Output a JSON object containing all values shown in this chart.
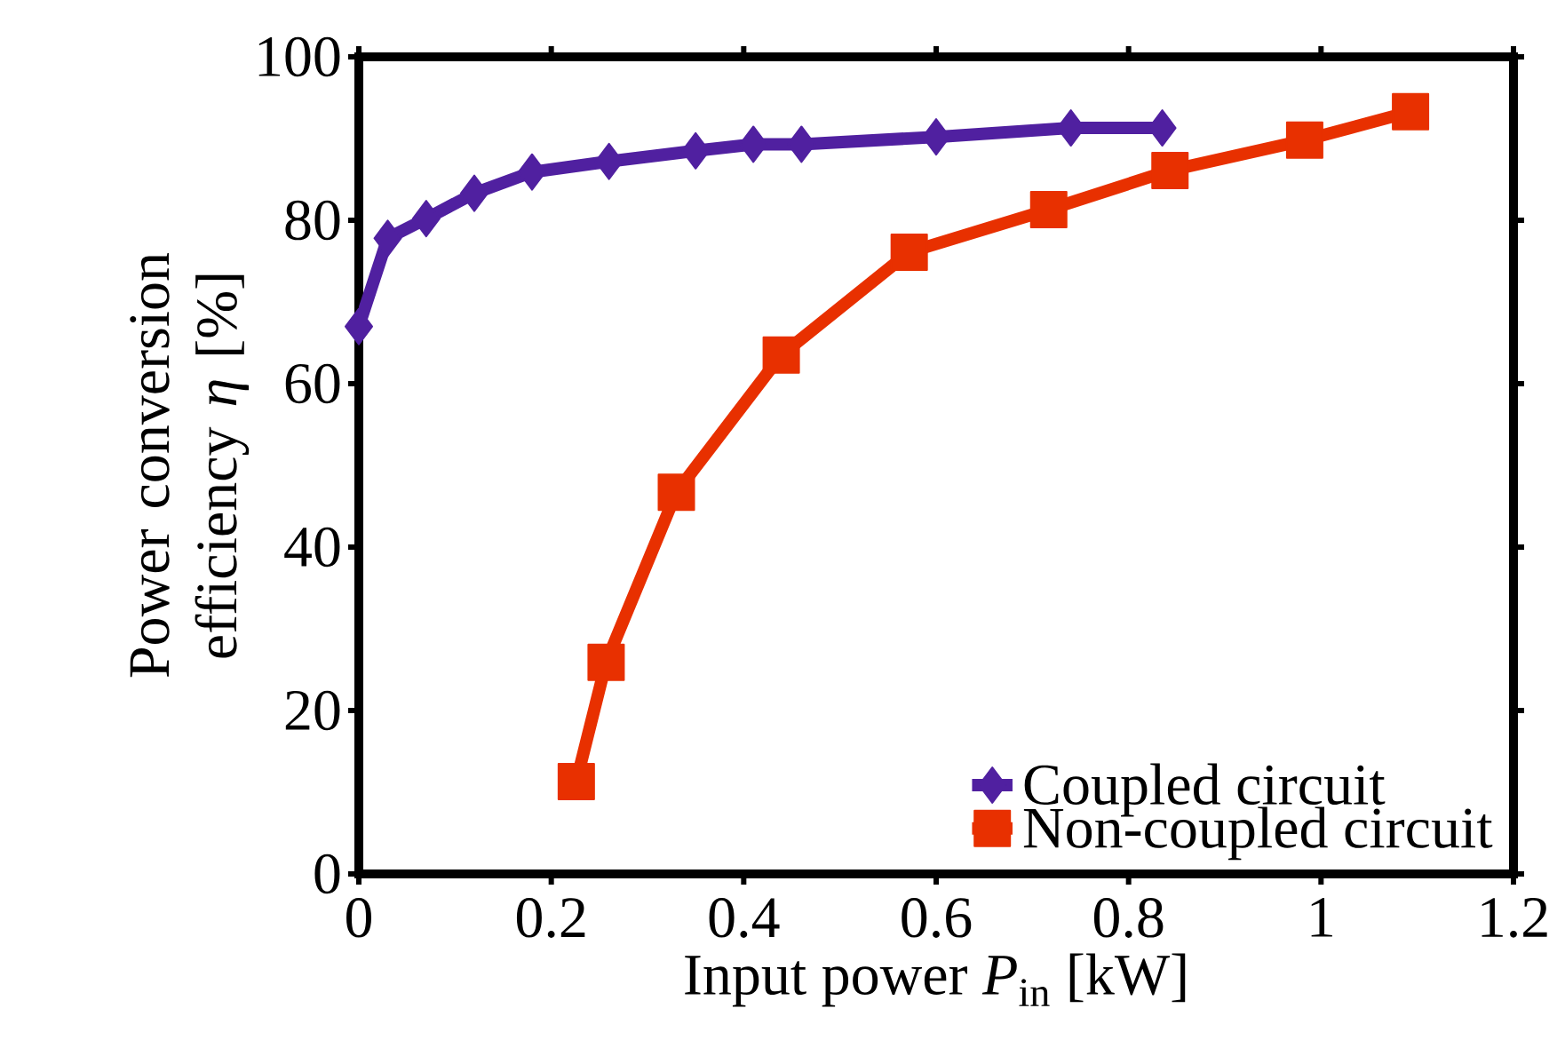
{
  "chart_data": {
    "type": "line",
    "xlabel": "Input power  *P*$_{in}$ [kW]",
    "ylabel": "Power conversion efficiency *η* [%]",
    "xlim": [
      0,
      1.2
    ],
    "ylim": [
      0,
      100
    ],
    "xticks": [
      0,
      0.2,
      0.4,
      0.6,
      0.8,
      1,
      1.2
    ],
    "yticks": [
      0,
      20,
      40,
      60,
      80,
      100
    ],
    "legend": "bottom right",
    "grid": false,
    "line_style": "solid",
    "series": [
      {
        "name": "Coupled circuit",
        "color": "#5020a0",
        "marker": "diamond",
        "x": [
          0.0,
          0.03,
          0.07,
          0.12,
          0.18,
          0.26,
          0.35,
          0.41,
          0.46,
          0.6,
          0.74,
          0.835
        ],
        "values": [
          67.0,
          77.8,
          80.2,
          83.3,
          85.9,
          87.2,
          88.5,
          89.3,
          89.3,
          90.2,
          91.3,
          91.3
        ]
      },
      {
        "name": "Non-coupled circuit",
        "color": "#e83000",
        "marker": "square",
        "x": [
          0.226,
          0.257,
          0.33,
          0.439,
          0.572,
          0.717,
          0.843,
          0.983,
          1.093
        ],
        "values": [
          11.3,
          25.9,
          46.7,
          63.5,
          76.1,
          81.3,
          86.1,
          89.8,
          93.3
        ]
      }
    ]
  }
}
